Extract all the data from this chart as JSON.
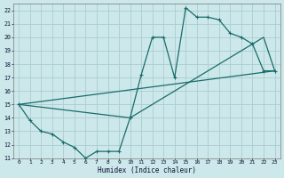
{
  "xlabel": "Humidex (Indice chaleur)",
  "bg_color": "#cce8ea",
  "grid_color": "#aacdd0",
  "line_color": "#1a6b6b",
  "xlim": [
    -0.5,
    23.5
  ],
  "ylim": [
    11,
    22.5
  ],
  "xticks": [
    0,
    1,
    2,
    3,
    4,
    5,
    6,
    7,
    8,
    9,
    10,
    11,
    12,
    13,
    14,
    15,
    16,
    17,
    18,
    19,
    20,
    21,
    22,
    23
  ],
  "yticks": [
    11,
    12,
    13,
    14,
    15,
    16,
    17,
    18,
    19,
    20,
    21,
    22
  ],
  "line1_x": [
    0,
    1,
    2,
    3,
    4,
    5,
    6,
    7,
    8,
    9,
    10,
    11,
    12,
    13,
    14,
    15,
    16,
    17,
    18,
    19,
    20,
    21,
    22,
    23
  ],
  "line1_y": [
    15.0,
    13.8,
    13.0,
    12.8,
    12.2,
    11.8,
    11.0,
    11.5,
    11.5,
    11.5,
    14.0,
    17.2,
    20.0,
    20.0,
    17.0,
    22.2,
    21.5,
    21.5,
    21.3,
    20.3,
    20.0,
    19.5,
    17.5,
    17.5
  ],
  "line2_x": [
    0,
    10,
    22,
    23
  ],
  "line2_y": [
    15.0,
    14.0,
    20.0,
    17.5
  ],
  "line3_x": [
    0,
    23
  ],
  "line3_y": [
    15.0,
    17.5
  ]
}
